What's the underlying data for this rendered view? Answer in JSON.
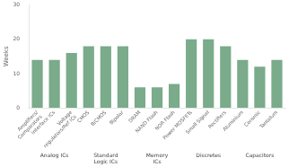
{
  "chart_data": {
    "type": "bar",
    "categories": [
      "Amplifiers/\nComparators",
      "Interface ICs",
      "Voltage\nregulators/Ref ICs",
      "CMOS",
      "BiCMOS",
      "Bipolar",
      "DRAM",
      "NAND Flash",
      "NOR Flash",
      "Power MOSFETs",
      "Small Signal",
      "Rectifiers",
      "Aluminium",
      "Ceramic",
      "Tantalum"
    ],
    "values": [
      14,
      14,
      16,
      18,
      18,
      18,
      6,
      6,
      7,
      20,
      20,
      18,
      14,
      12,
      14
    ],
    "groups": [
      "Analog ICs",
      "Standard\nLogic ICs",
      "Memory\nICs",
      "Discretes",
      "Capacitors"
    ],
    "group_sizes": [
      3,
      3,
      3,
      3,
      3
    ],
    "color": "#7aab8a",
    "ylabel": "Weeks",
    "ylim": [
      0,
      30
    ],
    "yticks": [
      0,
      10,
      20,
      30
    ],
    "grid": false
  }
}
